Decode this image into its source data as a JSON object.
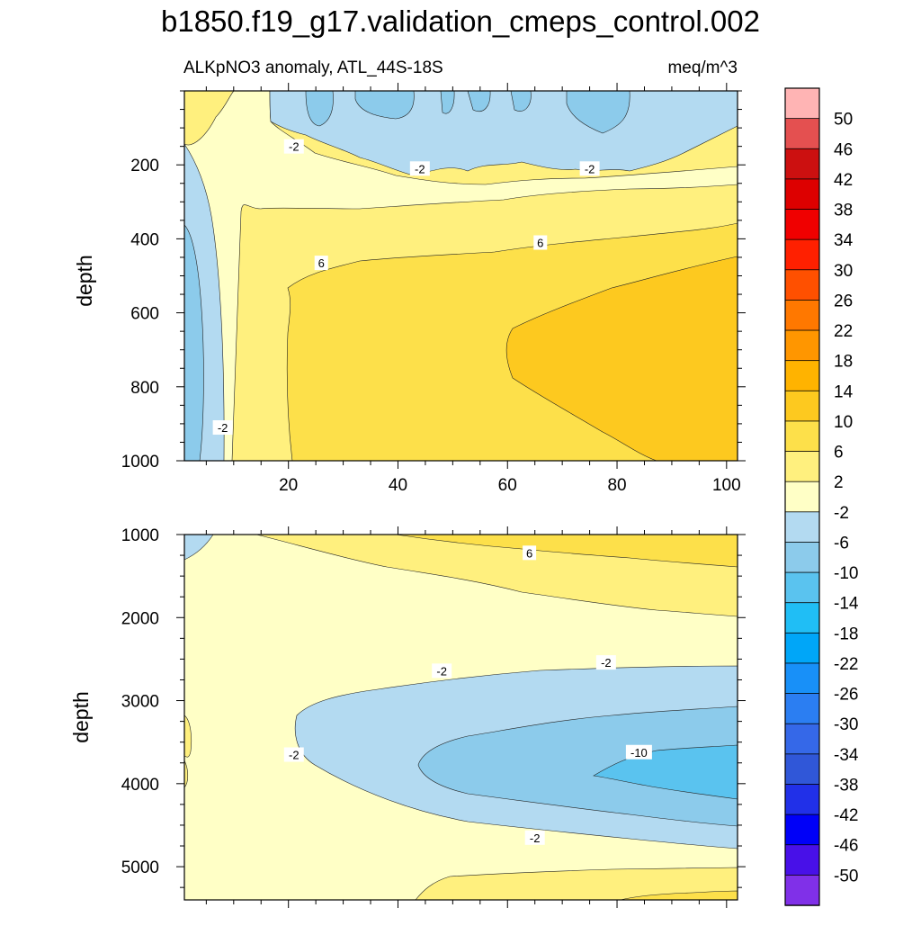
{
  "chart_data": {
    "type": "contour",
    "title": "b1850.f19_g17.validation_cmeps_control.002",
    "subtitle_left": "ALKpNO3 anomaly, ATL_44S-18S",
    "subtitle_right": "meq/m^3",
    "ylabel": "depth",
    "xticks": [
      "20",
      "40",
      "60",
      "80",
      "100"
    ],
    "xlim": [
      1,
      102
    ],
    "colorbar": {
      "labels": [
        "50",
        "46",
        "42",
        "38",
        "34",
        "30",
        "26",
        "22",
        "18",
        "14",
        "10",
        "6",
        "2",
        "-2",
        "-6",
        "-10",
        "-14",
        "-18",
        "-22",
        "-26",
        "-30",
        "-34",
        "-38",
        "-42",
        "-46",
        "-50"
      ],
      "colors_top_to_bottom": [
        "#FFB4B4",
        "#E45050",
        "#CC1010",
        "#DD0000",
        "#F00000",
        "#FF2000",
        "#FF5000",
        "#FF7800",
        "#FF9600",
        "#FFB300",
        "#FDC91F",
        "#FDE04A",
        "#FFF07E",
        "#FFFFC6",
        "#B3DAF1",
        "#8CCBEB",
        "#5AC3EF",
        "#20BEF5",
        "#00A6F8",
        "#1890F8",
        "#2B7EF2",
        "#3568E8",
        "#3057D8",
        "#2130E8",
        "#0000F8",
        "#4810E8",
        "#8030E8"
      ]
    },
    "upper_panel": {
      "yticks": [
        "200",
        "400",
        "600",
        "800",
        "1000"
      ],
      "ylim": [
        0,
        1000
      ],
      "contour_labels": [
        {
          "text": "-2",
          "x": 21,
          "y": 150
        },
        {
          "text": "-2",
          "x": 44,
          "y": 210
        },
        {
          "text": "-2",
          "x": 75,
          "y": 210
        },
        {
          "text": "6",
          "x": 26,
          "y": 465
        },
        {
          "text": "6",
          "x": 66,
          "y": 410
        },
        {
          "text": "-2",
          "x": 8,
          "y": 910
        }
      ]
    },
    "lower_panel": {
      "yticks": [
        "1000",
        "2000",
        "3000",
        "4000",
        "5000"
      ],
      "ylim": [
        1000,
        5400
      ],
      "contour_labels": [
        {
          "text": "6",
          "x": 64,
          "y": 1220
        },
        {
          "text": "-2",
          "x": 48,
          "y": 2640
        },
        {
          "text": "-2",
          "x": 78,
          "y": 2540
        },
        {
          "text": "-2",
          "x": 21,
          "y": 3650
        },
        {
          "text": "-10",
          "x": 84,
          "y": 3620
        },
        {
          "text": "-2",
          "x": 65,
          "y": 4650
        }
      ]
    }
  }
}
